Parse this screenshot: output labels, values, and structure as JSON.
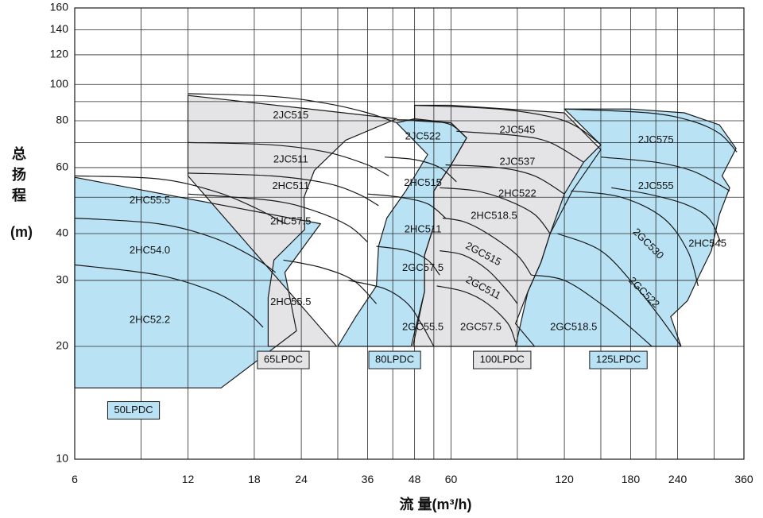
{
  "chart_data": {
    "type": "area",
    "title": "",
    "xlabel": "流 量(m³/h)",
    "ylabel": "总扬程",
    "ylabel_unit": "(m)",
    "x_scale": "log",
    "y_scale": "log",
    "xlim": [
      6,
      360
    ],
    "ylim": [
      10,
      160
    ],
    "x_ticks": [
      6,
      12,
      18,
      24,
      36,
      48,
      60,
      120,
      180,
      240,
      360
    ],
    "y_ticks": [
      10,
      20,
      30,
      40,
      60,
      80,
      100,
      120,
      140,
      160
    ],
    "x_grid": [
      6,
      9,
      12,
      18,
      24,
      30,
      36,
      42,
      48,
      54,
      60,
      90,
      120,
      150,
      180,
      210,
      240,
      300,
      360
    ],
    "y_grid": [
      10,
      20,
      30,
      40,
      50,
      60,
      70,
      80,
      90,
      100,
      120,
      140,
      160
    ],
    "colors": {
      "blue": "#b9e2f5",
      "gray": "#e4e4e6",
      "line": "#1a1a1a"
    },
    "zones": [
      {
        "label": "50LPDC",
        "color": "blue",
        "label_at": [
          8.6,
          13.5
        ],
        "outline": [
          [
            6,
            15.5
          ],
          [
            14.7,
            15.5
          ],
          [
            23.3,
            22
          ],
          [
            21.7,
            31.5
          ],
          [
            27,
            42.5
          ],
          [
            6,
            56.5
          ]
        ],
        "curves": [
          {
            "name": "2HC55.5",
            "label_at": [
              9.5,
              49
            ],
            "points": [
              [
                6,
                57
              ],
              [
                10,
                56
              ],
              [
                14,
                52
              ],
              [
                18,
                47
              ],
              [
                21.7,
                42.5
              ]
            ]
          },
          {
            "name": "2HC54.0",
            "label_at": [
              9.5,
              36
            ],
            "points": [
              [
                6,
                44
              ],
              [
                10,
                42.5
              ],
              [
                14,
                39
              ],
              [
                18,
                34.5
              ],
              [
                20.5,
                31.5
              ]
            ]
          },
          {
            "name": "2HC52.2",
            "label_at": [
              9.5,
              23.5
            ],
            "points": [
              [
                6,
                33
              ],
              [
                10,
                31
              ],
              [
                14,
                28
              ],
              [
                17,
                25
              ],
              [
                19,
                22.5
              ]
            ]
          }
        ]
      },
      {
        "label": "65LPDC",
        "color": "gray",
        "label_at": [
          21.5,
          18.4
        ],
        "outline": [
          [
            29.8,
            20
          ],
          [
            19.6,
            20
          ],
          [
            19.6,
            27
          ],
          [
            20.3,
            34
          ],
          [
            24.5,
            41
          ],
          [
            24.4,
            50
          ],
          [
            26,
            59
          ],
          [
            31.5,
            71
          ],
          [
            43,
            81
          ],
          [
            12,
            93.5
          ],
          [
            12,
            57
          ]
        ],
        "curves": [
          {
            "name": "2JC515",
            "label_at": [
              22.5,
              82.5
            ],
            "points": [
              [
                12,
                94.5
              ],
              [
                20,
                93
              ],
              [
                28,
                89
              ],
              [
                36,
                84
              ],
              [
                43,
                79
              ]
            ]
          },
          {
            "name": "2JC511",
            "label_at": [
              22.5,
              63
            ],
            "points": [
              [
                12,
                70
              ],
              [
                20,
                69
              ],
              [
                28,
                66
              ],
              [
                36,
                61
              ],
              [
                41,
                57
              ]
            ]
          },
          {
            "name": "2HC511",
            "label_at": [
              22.5,
              53.5
            ],
            "points": [
              [
                12,
                58
              ],
              [
                20,
                57
              ],
              [
                28,
                54.5
              ],
              [
                34,
                51
              ],
              [
                38.5,
                47.5
              ]
            ]
          },
          {
            "name": "2HC57.5",
            "label_at": [
              22.5,
              43
            ],
            "points": [
              [
                12,
                51
              ],
              [
                20,
                49
              ],
              [
                26,
                46
              ],
              [
                32,
                42
              ],
              [
                36,
                38
              ]
            ]
          },
          {
            "name": "2HC55.5",
            "label_at": [
              22.5,
              26.2
            ],
            "points": [
              [
                21.5,
                34
              ],
              [
                27,
                32.5
              ],
              [
                33,
                30
              ],
              [
                38,
                26
              ]
            ]
          }
        ]
      },
      {
        "label": "80LPDC",
        "color": "blue",
        "label_at": [
          42.5,
          18.4
        ],
        "outline": [
          [
            30,
            20
          ],
          [
            33.5,
            24
          ],
          [
            38,
            29
          ],
          [
            38.5,
            37
          ],
          [
            40.5,
            44
          ],
          [
            45.5,
            52
          ],
          [
            52,
            65
          ],
          [
            43,
            79
          ],
          [
            48,
            81
          ],
          [
            60,
            79
          ],
          [
            66,
            72
          ],
          [
            60,
            61
          ],
          [
            54,
            52
          ],
          [
            54,
            42
          ],
          [
            51,
            35
          ],
          [
            51,
            28
          ],
          [
            47,
            20
          ]
        ],
        "curves": [
          {
            "name": "2JC522",
            "label_at": [
              50.5,
              72.5
            ],
            "points": [
              [
                43,
                80.5
              ],
              [
                52,
                80
              ],
              [
                60,
                78
              ],
              [
                66,
                72
              ]
            ]
          },
          {
            "name": "2HC515",
            "label_at": [
              50.5,
              54.5
            ],
            "points": [
              [
                40,
                64
              ],
              [
                48,
                63
              ],
              [
                56,
                60
              ],
              [
                62,
                55
              ]
            ]
          },
          {
            "name": "2HC511",
            "label_at": [
              50.5,
              41
            ],
            "points": [
              [
                36,
                51
              ],
              [
                44,
                50
              ],
              [
                52,
                48
              ],
              [
                58,
                44
              ]
            ]
          },
          {
            "name": "2GC57.5",
            "label_at": [
              50.5,
              32.3
            ],
            "points": [
              [
                38,
                37
              ],
              [
                46,
                36
              ],
              [
                52,
                34
              ],
              [
                56,
                31
              ]
            ]
          },
          {
            "name": "2GC55.5",
            "label_at": [
              50.5,
              22.5
            ],
            "points": [
              [
                32,
                30
              ],
              [
                40,
                28.5
              ],
              [
                46,
                26
              ],
              [
                50,
                23
              ],
              [
                54,
                20
              ]
            ]
          }
        ]
      },
      {
        "label": "100LPDC",
        "color": "gray",
        "label_at": [
          82,
          18.4
        ],
        "outline": [
          [
            47.5,
            20
          ],
          [
            100,
            20
          ],
          [
            89,
            23
          ],
          [
            96,
            28
          ],
          [
            104,
            33.5
          ],
          [
            110,
            40
          ],
          [
            126,
            52
          ],
          [
            150,
            67
          ],
          [
            120,
            84
          ],
          [
            60,
            88
          ],
          [
            48,
            88
          ],
          [
            48,
            80
          ],
          [
            60,
            79
          ],
          [
            66,
            72
          ],
          [
            60,
            61
          ],
          [
            54,
            52
          ],
          [
            54,
            42
          ],
          [
            51,
            35
          ],
          [
            51,
            28
          ]
        ],
        "curves": [
          {
            "name": "2JC545",
            "label_at": [
              90,
              75.5
            ],
            "points": [
              [
                48,
                88
              ],
              [
                80,
                86
              ],
              [
                110,
                82
              ],
              [
                130,
                77
              ],
              [
                150,
                69
              ]
            ]
          },
          {
            "name": "2JC537",
            "label_at": [
              90,
              62
            ],
            "points": [
              [
                62,
                75
              ],
              [
                90,
                73
              ],
              [
                110,
                70
              ],
              [
                135,
                62
              ]
            ]
          },
          {
            "name": "2HC522",
            "label_at": [
              90,
              51
            ],
            "points": [
              [
                58,
                61
              ],
              [
                80,
                60
              ],
              [
                100,
                57
              ],
              [
                120,
                51
              ]
            ]
          },
          {
            "name": "2HC518.5",
            "label_at": [
              78,
              44.5
            ],
            "points": [
              [
                56,
                53
              ],
              [
                70,
                52
              ],
              [
                85,
                49
              ],
              [
                100,
                45
              ],
              [
                110,
                40
              ]
            ]
          },
          {
            "name": "2GC515",
            "label_at": [
              73,
              35.2
            ],
            "rotate": 28,
            "points": [
              [
                57,
                44
              ],
              [
                65,
                43
              ],
              [
                75,
                40
              ],
              [
                90,
                35
              ],
              [
                98,
                31
              ]
            ]
          },
          {
            "name": "2GC511",
            "label_at": [
              73,
              28.6
            ],
            "rotate": 28,
            "points": [
              [
                56,
                36
              ],
              [
                65,
                35
              ],
              [
                75,
                32
              ],
              [
                85,
                28
              ],
              [
                90,
                26
              ]
            ]
          },
          {
            "name": "2GC57.5",
            "label_at": [
              72,
              22.5
            ],
            "points": [
              [
                55,
                29
              ],
              [
                65,
                28
              ],
              [
                75,
                26
              ],
              [
                85,
                23
              ],
              [
                89,
                20.5
              ]
            ]
          }
        ]
      },
      {
        "label": "125LPDC",
        "color": "blue",
        "label_at": [
          167,
          18.4
        ],
        "outline": [
          [
            89,
            20
          ],
          [
            245,
            20
          ],
          [
            230,
            24
          ],
          [
            255,
            26.5
          ],
          [
            270,
            30
          ],
          [
            295,
            36
          ],
          [
            310,
            45
          ],
          [
            330,
            53
          ],
          [
            315,
            57
          ],
          [
            343,
            67.5
          ],
          [
            310,
            78
          ],
          [
            250,
            84
          ],
          [
            180,
            86
          ],
          [
            120,
            86
          ],
          [
            150,
            69
          ],
          [
            135,
            62
          ],
          [
            120,
            51
          ],
          [
            110,
            40
          ],
          [
            104,
            33.5
          ],
          [
            96,
            28
          ]
        ],
        "curves": [
          {
            "name": "2JC575",
            "label_at": [
              210,
              71
            ],
            "points": [
              [
                120,
                86
              ],
              [
                200,
                84
              ],
              [
                260,
                80
              ],
              [
                310,
                74
              ],
              [
                345,
                66
              ]
            ]
          },
          {
            "name": "2JC555",
            "label_at": [
              210,
              53.5
            ],
            "points": [
              [
                150,
                64
              ],
              [
                210,
                62
              ],
              [
                260,
                59
              ],
              [
                300,
                55
              ],
              [
                330,
                52
              ]
            ]
          },
          {
            "name": "2HC545",
            "label_at": [
              288,
              37.5
            ],
            "points": [
              [
                160,
                53
              ],
              [
                200,
                51
              ],
              [
                250,
                48
              ],
              [
                290,
                44
              ],
              [
                312,
                38
              ]
            ]
          },
          {
            "name": "2GC530",
            "label_at": [
              200,
              37.5
            ],
            "rotate": 45,
            "points": [
              [
                125,
                52
              ],
              [
                170,
                50
              ],
              [
                220,
                44
              ],
              [
                255,
                36
              ],
              [
                272,
                29
              ]
            ]
          },
          {
            "name": "2GC522",
            "label_at": [
              195,
              27.8
            ],
            "rotate": 45,
            "points": [
              [
                115,
                40
              ],
              [
                150,
                36
              ],
              [
                185,
                29
              ],
              [
                215,
                24
              ],
              [
                245,
                20
              ]
            ]
          },
          {
            "name": "2GC518.5",
            "label_at": [
              127,
              22.5
            ],
            "points": [
              [
                98,
                31
              ],
              [
                120,
                30
              ],
              [
                150,
                26
              ],
              [
                175,
                23
              ],
              [
                205,
                20
              ]
            ]
          }
        ]
      }
    ]
  }
}
